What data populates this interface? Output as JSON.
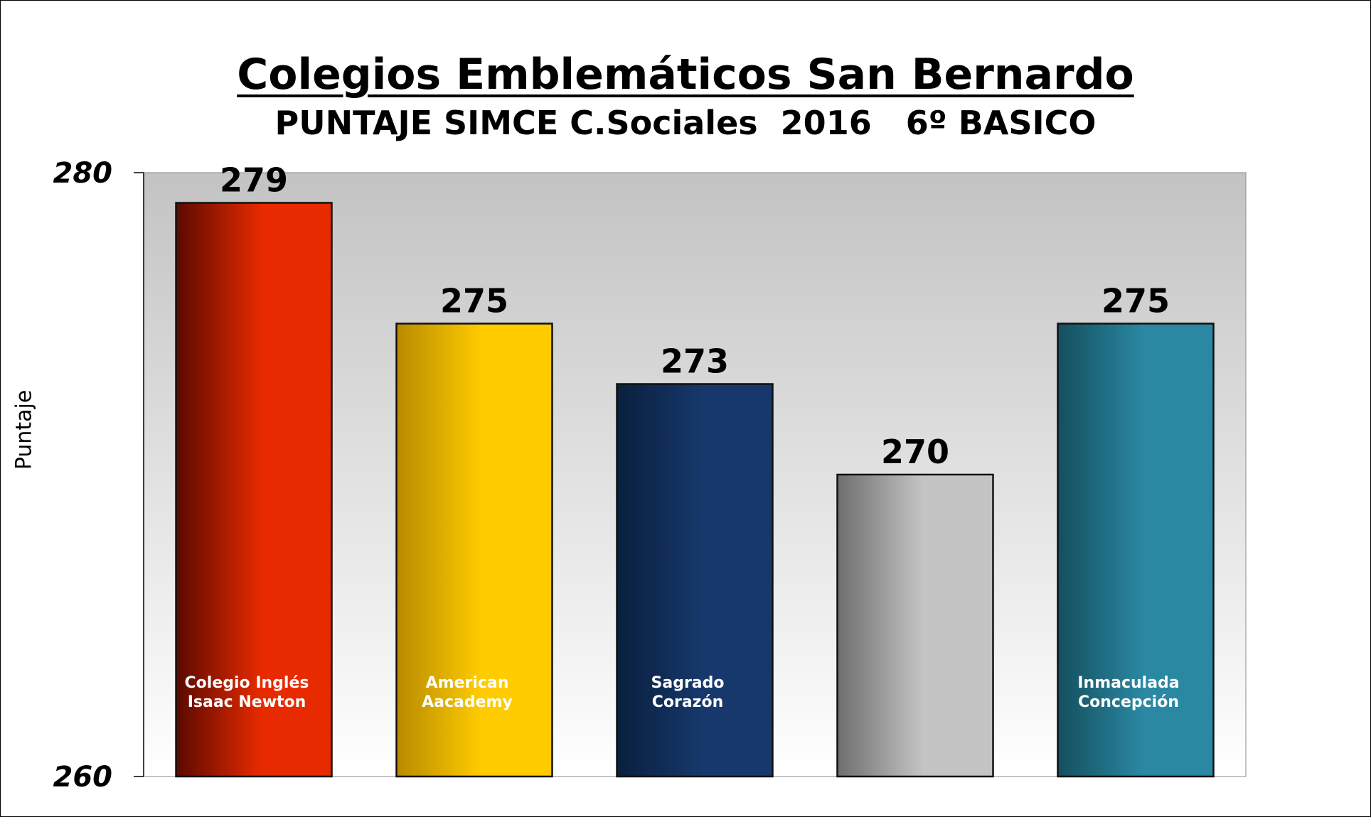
{
  "chart_data": {
    "type": "bar",
    "title": "Colegios Emblemáticos San Bernardo",
    "subtitle": "PUNTAJE SIMCE C.Sociales  2016   6º BASICO",
    "ylabel": "Puntaje",
    "ylim": [
      260,
      280
    ],
    "yticks": [
      260,
      280
    ],
    "ytick_labels": [
      "260",
      "280"
    ],
    "grid": false,
    "categories": [
      [
        "Colegio Inglés",
        "Isaac Newton"
      ],
      [
        "American",
        "Aacademy"
      ],
      [
        "Sagrado",
        "Corazón"
      ],
      [
        "",
        ""
      ],
      [
        "Inmaculada",
        "Concepción"
      ]
    ],
    "values": [
      279,
      275,
      273,
      270,
      275
    ],
    "value_labels": [
      "279",
      "275",
      "273",
      "270",
      "275"
    ],
    "colors": [
      {
        "dark": "#5a0a00",
        "light": "#e82a00"
      },
      {
        "dark": "#b88a00",
        "light": "#ffcc00"
      },
      {
        "dark": "#0a1f3d",
        "light": "#16386c"
      },
      {
        "dark": "#6e6e6e",
        "light": "#c4c4c4"
      },
      {
        "dark": "#144f5e",
        "light": "#2a88a3"
      }
    ],
    "plot_background": {
      "top": "#c3c3c3",
      "bottom": "#ffffff"
    }
  }
}
